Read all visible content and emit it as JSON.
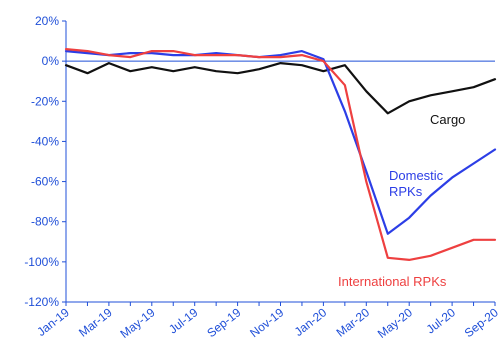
{
  "chart_data": {
    "type": "line",
    "x": [
      "Jan-19",
      "Feb-19",
      "Mar-19",
      "Apr-19",
      "May-19",
      "Jun-19",
      "Jul-19",
      "Aug-19",
      "Sep-19",
      "Oct-19",
      "Nov-19",
      "Dec-19",
      "Jan-20",
      "Feb-20",
      "Mar-20",
      "Apr-20",
      "May-20",
      "Jun-20",
      "Jul-20",
      "Aug-20",
      "Sep-20"
    ],
    "xticks": [
      "Jan-19",
      "Mar-19",
      "May-19",
      "Jul-19",
      "Sep-19",
      "Nov-19",
      "Jan-20",
      "Mar-20",
      "May-20",
      "Jul-20",
      "Sep-20"
    ],
    "yticks": [
      "20%",
      "0%",
      "-20%",
      "-40%",
      "-60%",
      "-80%",
      "-100%",
      "-120%"
    ],
    "ylim": [
      -120,
      20
    ],
    "grid": false,
    "series": [
      {
        "name": "Cargo",
        "color": "#111111",
        "values": [
          -2,
          -6,
          -1,
          -5,
          -3,
          -5,
          -3,
          -5,
          -6,
          -4,
          -1,
          -2,
          -5,
          -2,
          -15,
          -26,
          -20,
          -17,
          -15,
          -13,
          -9
        ]
      },
      {
        "name": "Domestic RPKs",
        "color": "#2c3ee6",
        "values": [
          5,
          4,
          3,
          4,
          4,
          3,
          3,
          4,
          3,
          2,
          3,
          5,
          1,
          -25,
          -55,
          -86,
          -78,
          -67,
          -58,
          -51,
          -44
        ]
      },
      {
        "name": "International RPKs",
        "color": "#ee4040",
        "values": [
          6,
          5,
          3,
          2,
          5,
          5,
          3,
          3,
          3,
          2,
          2,
          3,
          0,
          -12,
          -60,
          -98,
          -99,
          -97,
          -93,
          -89,
          -89
        ]
      }
    ],
    "labels": {
      "cargo": "Cargo",
      "domestic_line1": "Domestic",
      "domestic_line2": "RPKs",
      "international": "International RPKs"
    }
  }
}
